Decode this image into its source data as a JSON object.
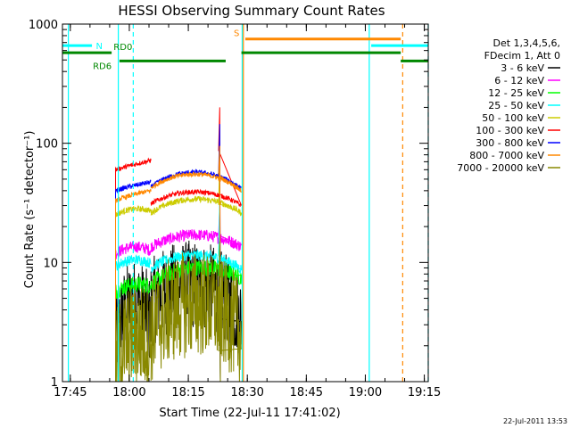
{
  "chart_data": {
    "type": "line",
    "title": "HESSI Observing Summary Count Rates",
    "xlabel": "Start Time (22-Jul-11 17:41:02)",
    "ylabel": "Count Rate (s⁻¹ detector⁻¹)",
    "yscale": "log",
    "ylim": [
      1,
      1000
    ],
    "xlim_minutes": [
      -2,
      40
    ],
    "x_unit": "minutes after 17:45",
    "x_ticks": [
      {
        "label": "17:45",
        "value": 0
      },
      {
        "label": "18:00",
        "value": 15
      },
      {
        "label": "18:15",
        "value": 30
      },
      {
        "label": "18:30",
        "value": 45
      },
      {
        "label": "18:45",
        "value": 60
      },
      {
        "label": "19:00",
        "value": 75
      },
      {
        "label": "19:15",
        "value": 90
      }
    ],
    "y_ticks": [
      {
        "label": "1",
        "value": 1
      },
      {
        "label": "10",
        "value": 10
      },
      {
        "label": "100",
        "value": 100
      },
      {
        "label": "1000",
        "value": 1000
      }
    ],
    "legend_header": [
      "Det 1,3,4,5,6,",
      "FDecim 1, Att 0"
    ],
    "timestamp": "22-Jul-2011 13:53",
    "data_gaps_minutes": [
      [
        -2,
        11.5
      ],
      [
        38.0,
        91
      ]
    ],
    "segment_breaks_minutes": [
      20.5,
      43.5
    ],
    "series": [
      {
        "name": "3 - 6 keV",
        "color": "#000000",
        "seg": [
          [
            2.1,
            4.5,
            3.0
          ],
          [
            4.5,
            6.5,
            3.3
          ],
          [
            4.8,
            2.4,
            2.6
          ]
        ],
        "noise": 0.75,
        "spike": 3
      },
      {
        "name": "6 - 12 keV",
        "color": "#ff00ff",
        "seg": [
          [
            11.8,
            13.5,
            12.5
          ],
          [
            13.5,
            17.0,
            13.5
          ],
          [
            14.0,
            11.5,
            13.0
          ]
        ],
        "noise": 0.1,
        "spike": 30
      },
      {
        "name": "12 - 25 keV",
        "color": "#00ff00",
        "seg": [
          [
            5.7,
            6.5,
            6.3
          ],
          [
            6.6,
            9.0,
            7.4
          ],
          [
            7.0,
            5.2,
            6.0
          ]
        ],
        "noise": 0.14,
        "spike": 14
      },
      {
        "name": "25 - 50 keV",
        "color": "#00ffff",
        "seg": [
          [
            9.3,
            10.5,
            9.8
          ],
          [
            9.0,
            11.5,
            8.8
          ],
          [
            9.5,
            8.0,
            8.8
          ]
        ],
        "noise": 0.09,
        "spike": 35
      },
      {
        "name": "50 - 100 keV",
        "color": "#cccc00",
        "seg": [
          [
            25.0,
            28.0,
            27.0
          ],
          [
            26.0,
            34.0,
            26.0
          ],
          [
            27.0,
            22.0,
            24.0
          ]
        ],
        "noise": 0.05,
        "spike": 70
      },
      {
        "name": "100 - 300 keV",
        "color": "#ff0000",
        "seg": [
          [
            60.0,
            66.0,
            72.0
          ],
          [
            31.0,
            39.0,
            30.0
          ],
          [
            82.0,
            70.0,
            67.0
          ]
        ],
        "noise": 0.04,
        "spike": 200
      },
      {
        "name": "300 - 800 keV",
        "color": "#0000ff",
        "seg": [
          [
            40.0,
            44.0,
            47.0
          ],
          [
            43.0,
            57.0,
            41.0
          ],
          [
            49.0,
            43.0,
            42.0
          ]
        ],
        "noise": 0.04,
        "spike": 145
      },
      {
        "name": "800 - 7000 keV",
        "color": "#ff8800",
        "seg": [
          [
            33.0,
            37.0,
            40.0
          ],
          [
            42.0,
            55.0,
            40.0
          ],
          [
            52.0,
            42.0,
            42.0
          ]
        ],
        "noise": 0.04,
        "spike": 95
      },
      {
        "name": "7000 - 20000 keV",
        "color": "#888800",
        "seg": [
          [
            1.4,
            2.4,
            2.1
          ],
          [
            2.6,
            4.5,
            2.4
          ],
          [
            3.0,
            1.5,
            1.4
          ]
        ],
        "noise": 0.9,
        "spike": 15
      }
    ],
    "state_bars": [
      {
        "name": "N",
        "color": "#00ffff",
        "level": 660,
        "spans": [
          [
            -2,
            5.5
          ],
          [
            76.5,
            91
          ]
        ]
      },
      {
        "name": "S",
        "color": "#ff8800",
        "level": 750,
        "spans": [
          [
            44.5,
            84
          ]
        ]
      },
      {
        "name": "RD0",
        "color": "#008800",
        "level": 575,
        "spans": [
          [
            -2,
            10.5
          ],
          [
            43.5,
            84
          ]
        ]
      },
      {
        "name": "RD6",
        "color": "#008800",
        "level": 490,
        "spans": [
          [
            12.5,
            39.5
          ],
          [
            84,
            91
          ]
        ]
      }
    ],
    "vertical_lines": [
      {
        "x": -0.5,
        "color": "#00ffff",
        "dash": false
      },
      {
        "x": 12.2,
        "color": "#00ffff",
        "dash": false
      },
      {
        "x": 16.0,
        "color": "#00ffff",
        "dash": true
      },
      {
        "x": 43.7,
        "color": "#00ffff",
        "dash": false
      },
      {
        "x": 44.0,
        "color": "#ff8800",
        "dash": false
      },
      {
        "x": 76.0,
        "color": "#00ffff",
        "dash": false
      },
      {
        "x": 84.5,
        "color": "#ff8800",
        "dash": true
      },
      {
        "x": 91.0,
        "color": "#00ffff",
        "dash": true
      }
    ]
  }
}
